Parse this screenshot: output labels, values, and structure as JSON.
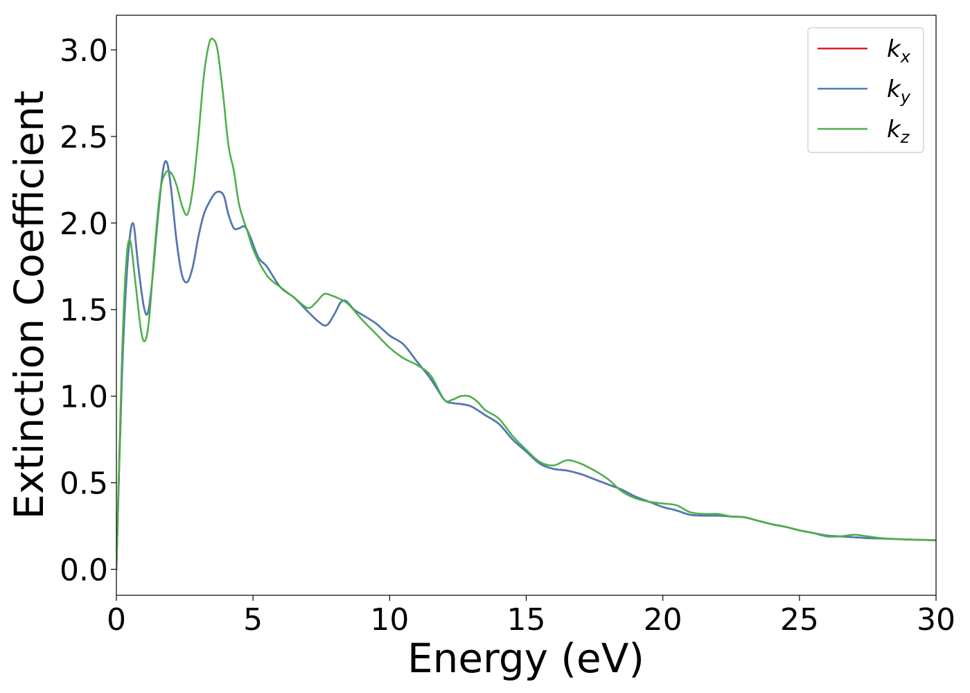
{
  "chart_data": {
    "type": "line",
    "xlabel": "Energy (eV)",
    "ylabel": "Extinction Coefficient",
    "xlim": [
      0,
      30
    ],
    "ylim": [
      -0.15,
      3.2
    ],
    "xticks": [
      0,
      5,
      10,
      15,
      20,
      25,
      30
    ],
    "xtick_labels": [
      "0",
      "5",
      "10",
      "15",
      "20",
      "25",
      "30"
    ],
    "yticks": [
      0.0,
      0.5,
      1.0,
      1.5,
      2.0,
      2.5,
      3.0
    ],
    "ytick_labels": [
      "0.0",
      "0.5",
      "1.0",
      "1.5",
      "2.0",
      "2.5",
      "3.0"
    ],
    "grid": false,
    "legend_position": "top-right",
    "series": [
      {
        "name": "k_x",
        "label_main": "k",
        "label_sub": "x",
        "color": "#e41a1c",
        "x": [
          0,
          0.2,
          0.4,
          0.6,
          0.8,
          1.0,
          1.15,
          1.3,
          1.5,
          1.7,
          1.85,
          2.0,
          2.2,
          2.4,
          2.6,
          2.8,
          3.0,
          3.2,
          3.4,
          3.6,
          3.8,
          3.95,
          4.1,
          4.3,
          4.5,
          4.7,
          4.9,
          5.2,
          5.5,
          6.0,
          6.5,
          7.0,
          7.4,
          7.7,
          8.0,
          8.2,
          8.4,
          8.7,
          9.0,
          9.5,
          10.0,
          10.5,
          11.0,
          11.5,
          12.0,
          12.3,
          12.6,
          13.0,
          13.5,
          14.0,
          14.5,
          15.0,
          15.5,
          16.0,
          16.5,
          17.0,
          17.5,
          18.0,
          18.5,
          19.0,
          19.5,
          20.0,
          20.5,
          21.0,
          21.5,
          22.0,
          22.5,
          23.0,
          23.5,
          24.0,
          24.5,
          25.0,
          25.5,
          26.0,
          26.5,
          27.0,
          27.5,
          28.0,
          28.5,
          29.0,
          30.0
        ],
        "y": [
          0.0,
          1.1,
          1.75,
          2.0,
          1.75,
          1.52,
          1.48,
          1.65,
          2.0,
          2.3,
          2.35,
          2.2,
          1.9,
          1.7,
          1.66,
          1.75,
          1.92,
          2.05,
          2.12,
          2.17,
          2.18,
          2.15,
          2.05,
          1.97,
          1.97,
          1.98,
          1.92,
          1.8,
          1.75,
          1.63,
          1.57,
          1.49,
          1.43,
          1.41,
          1.48,
          1.54,
          1.55,
          1.5,
          1.47,
          1.42,
          1.35,
          1.3,
          1.2,
          1.1,
          0.98,
          0.96,
          0.955,
          0.94,
          0.89,
          0.84,
          0.75,
          0.68,
          0.61,
          0.58,
          0.57,
          0.55,
          0.52,
          0.49,
          0.46,
          0.42,
          0.39,
          0.36,
          0.34,
          0.315,
          0.31,
          0.31,
          0.305,
          0.3,
          0.28,
          0.26,
          0.245,
          0.225,
          0.21,
          0.195,
          0.19,
          0.185,
          0.18,
          0.178,
          0.175,
          0.172,
          0.168
        ]
      },
      {
        "name": "k_y",
        "label_main": "k",
        "label_sub": "y",
        "color": "#4a7bb7",
        "x": [
          0,
          0.2,
          0.4,
          0.6,
          0.8,
          1.0,
          1.15,
          1.3,
          1.5,
          1.7,
          1.85,
          2.0,
          2.2,
          2.4,
          2.6,
          2.8,
          3.0,
          3.2,
          3.4,
          3.6,
          3.8,
          3.95,
          4.1,
          4.3,
          4.5,
          4.7,
          4.9,
          5.2,
          5.5,
          6.0,
          6.5,
          7.0,
          7.4,
          7.7,
          8.0,
          8.2,
          8.4,
          8.7,
          9.0,
          9.5,
          10.0,
          10.5,
          11.0,
          11.5,
          12.0,
          12.3,
          12.6,
          13.0,
          13.5,
          14.0,
          14.5,
          15.0,
          15.5,
          16.0,
          16.5,
          17.0,
          17.5,
          18.0,
          18.5,
          19.0,
          19.5,
          20.0,
          20.5,
          21.0,
          21.5,
          22.0,
          22.5,
          23.0,
          23.5,
          24.0,
          24.5,
          25.0,
          25.5,
          26.0,
          26.5,
          27.0,
          27.5,
          28.0,
          28.5,
          29.0,
          30.0
        ],
        "y": [
          0.0,
          1.1,
          1.75,
          2.0,
          1.75,
          1.52,
          1.48,
          1.65,
          2.0,
          2.3,
          2.35,
          2.2,
          1.9,
          1.7,
          1.66,
          1.75,
          1.92,
          2.05,
          2.12,
          2.17,
          2.18,
          2.15,
          2.05,
          1.97,
          1.97,
          1.98,
          1.92,
          1.8,
          1.75,
          1.63,
          1.57,
          1.49,
          1.43,
          1.41,
          1.48,
          1.54,
          1.55,
          1.5,
          1.47,
          1.42,
          1.35,
          1.3,
          1.2,
          1.1,
          0.98,
          0.96,
          0.955,
          0.94,
          0.89,
          0.84,
          0.75,
          0.68,
          0.61,
          0.58,
          0.57,
          0.55,
          0.52,
          0.49,
          0.46,
          0.42,
          0.39,
          0.36,
          0.34,
          0.315,
          0.31,
          0.31,
          0.305,
          0.3,
          0.28,
          0.26,
          0.245,
          0.225,
          0.21,
          0.195,
          0.19,
          0.185,
          0.18,
          0.178,
          0.175,
          0.172,
          0.168
        ]
      },
      {
        "name": "k_z",
        "label_main": "k",
        "label_sub": "z",
        "color": "#4daf4a",
        "x": [
          0,
          0.2,
          0.35,
          0.5,
          0.7,
          0.9,
          1.05,
          1.2,
          1.4,
          1.6,
          1.8,
          2.0,
          2.2,
          2.4,
          2.6,
          2.8,
          3.0,
          3.2,
          3.4,
          3.55,
          3.7,
          3.9,
          4.1,
          4.3,
          4.5,
          4.8,
          5.0,
          5.3,
          5.6,
          6.0,
          6.5,
          7.0,
          7.3,
          7.6,
          7.9,
          8.2,
          8.5,
          9.0,
          9.5,
          10.0,
          10.5,
          11.0,
          11.5,
          12.0,
          12.3,
          12.6,
          12.9,
          13.2,
          13.5,
          14.0,
          14.5,
          15.0,
          15.5,
          16.0,
          16.5,
          17.0,
          17.5,
          18.0,
          18.5,
          19.0,
          19.5,
          20.0,
          20.5,
          21.0,
          21.5,
          22.0,
          22.5,
          23.0,
          23.5,
          24.0,
          24.5,
          25.0,
          25.5,
          26.0,
          26.5,
          27.0,
          27.5,
          28.0,
          28.5,
          29.0,
          30.0
        ],
        "y": [
          0.0,
          1.2,
          1.75,
          1.9,
          1.65,
          1.38,
          1.32,
          1.45,
          1.85,
          2.18,
          2.29,
          2.29,
          2.22,
          2.1,
          2.05,
          2.2,
          2.5,
          2.85,
          3.04,
          3.06,
          3.0,
          2.75,
          2.45,
          2.3,
          2.1,
          1.95,
          1.85,
          1.75,
          1.68,
          1.63,
          1.57,
          1.51,
          1.54,
          1.59,
          1.58,
          1.56,
          1.53,
          1.44,
          1.36,
          1.28,
          1.22,
          1.18,
          1.12,
          0.98,
          0.98,
          1.0,
          1.0,
          0.97,
          0.92,
          0.87,
          0.77,
          0.69,
          0.62,
          0.6,
          0.63,
          0.61,
          0.57,
          0.52,
          0.45,
          0.41,
          0.39,
          0.38,
          0.37,
          0.33,
          0.32,
          0.32,
          0.305,
          0.3,
          0.28,
          0.26,
          0.245,
          0.225,
          0.21,
          0.19,
          0.19,
          0.2,
          0.19,
          0.18,
          0.175,
          0.172,
          0.168
        ]
      }
    ]
  }
}
